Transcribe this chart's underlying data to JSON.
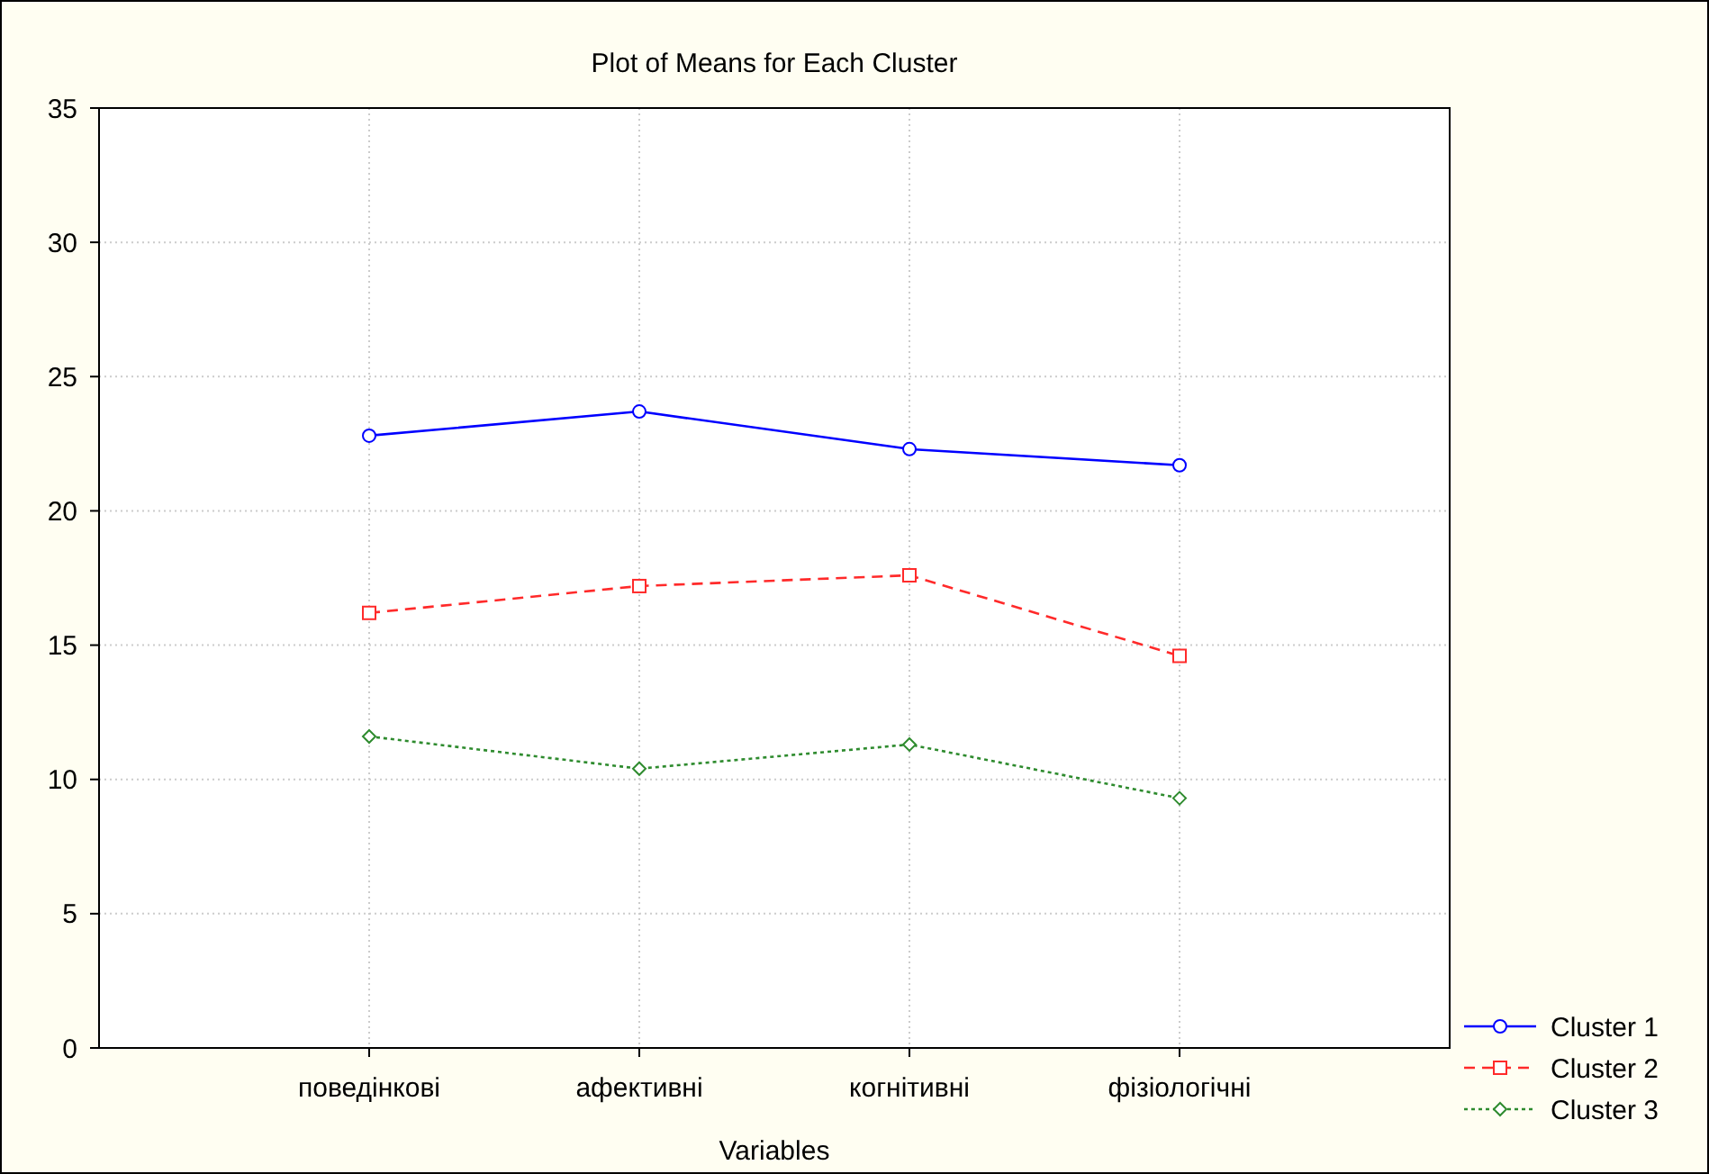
{
  "chart_data": {
    "type": "line",
    "title": "Plot of Means for Each Cluster",
    "xlabel": "Variables",
    "categories": [
      "поведінкові",
      "афективні",
      "когнітивні",
      "фізіологічні"
    ],
    "series": [
      {
        "name": "Cluster  1",
        "color": "#0000ff",
        "values": [
          22.8,
          23.7,
          22.3,
          21.7
        ],
        "marker": "circle",
        "line_style": "solid"
      },
      {
        "name": "Cluster  2",
        "color": "#ff2a2a",
        "values": [
          16.2,
          17.2,
          17.6,
          14.6
        ],
        "marker": "square",
        "line_style": "dashed"
      },
      {
        "name": "Cluster  3",
        "color": "#2e8b2e",
        "values": [
          11.6,
          10.4,
          11.3,
          9.3
        ],
        "marker": "diamond",
        "line_style": "dotted"
      }
    ],
    "ylim": [
      0,
      35
    ],
    "yticks": [
      0,
      5,
      10,
      15,
      20,
      25,
      30,
      35
    ],
    "grid": true,
    "legend": "bottom right"
  }
}
